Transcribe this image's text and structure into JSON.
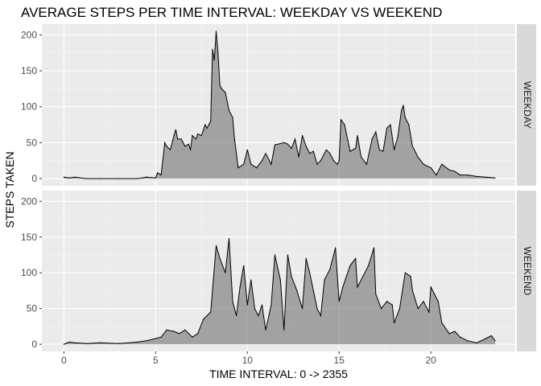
{
  "chart_data": {
    "type": "line",
    "title": "AVERAGE STEPS PER TIME INTERVAL: WEEKDAY VS WEEKEND",
    "xlabel": "TIME INTERVAL: 0 -> 2355",
    "ylabel": "STEPS TAKEN",
    "xlim": [
      -1.2,
      24.6
    ],
    "ylim": [
      -10,
      215
    ],
    "xticks": [
      0,
      5,
      10,
      15,
      20
    ],
    "yticks": [
      0,
      50,
      100,
      150,
      200
    ],
    "grid": true,
    "panels": [
      {
        "label": "WEEKDAY",
        "x": [
          0,
          0.3,
          0.6,
          1.2,
          2.0,
          3.0,
          4.0,
          4.5,
          5.0,
          5.1,
          5.3,
          5.5,
          5.6,
          5.8,
          6.0,
          6.1,
          6.2,
          6.4,
          6.6,
          6.8,
          6.9,
          7.0,
          7.2,
          7.3,
          7.5,
          7.7,
          7.8,
          8.0,
          8.1,
          8.2,
          8.3,
          8.4,
          8.5,
          8.6,
          8.8,
          9.0,
          9.1,
          9.2,
          9.3,
          9.5,
          9.8,
          10.0,
          10.2,
          10.5,
          10.8,
          11.0,
          11.3,
          11.5,
          12.0,
          12.2,
          12.4,
          12.6,
          12.8,
          13.0,
          13.2,
          13.4,
          13.6,
          13.8,
          14.0,
          14.3,
          14.5,
          14.7,
          14.9,
          15.0,
          15.1,
          15.3,
          15.6,
          15.9,
          16.0,
          16.2,
          16.5,
          16.8,
          17.0,
          17.2,
          17.4,
          17.6,
          17.8,
          18.0,
          18.2,
          18.4,
          18.5,
          18.6,
          18.8,
          19.0,
          19.3,
          19.6,
          20.0,
          20.3,
          20.6,
          21.0,
          21.3,
          21.6,
          22.0,
          22.5,
          23.0,
          23.5
        ],
        "values": [
          2,
          1,
          2,
          0,
          0,
          0,
          0,
          2,
          1,
          8,
          5,
          50,
          45,
          40,
          60,
          68,
          55,
          55,
          45,
          48,
          40,
          60,
          55,
          62,
          60,
          75,
          70,
          80,
          180,
          165,
          205,
          175,
          130,
          125,
          120,
          95,
          90,
          85,
          55,
          15,
          20,
          40,
          20,
          15,
          25,
          35,
          20,
          47,
          50,
          48,
          42,
          55,
          30,
          60,
          45,
          35,
          38,
          20,
          25,
          40,
          35,
          25,
          20,
          25,
          82,
          75,
          38,
          42,
          60,
          30,
          20,
          55,
          65,
          40,
          38,
          70,
          75,
          40,
          58,
          95,
          102,
          85,
          75,
          45,
          30,
          20,
          15,
          5,
          20,
          12,
          10,
          5,
          5,
          3,
          2,
          1
        ]
      },
      {
        "label": "WEEKEND",
        "x": [
          0,
          0.3,
          0.6,
          1.2,
          2.0,
          3.0,
          4.0,
          4.5,
          5.0,
          5.3,
          5.6,
          6.0,
          6.3,
          6.6,
          7.0,
          7.3,
          7.6,
          8.0,
          8.3,
          8.5,
          8.8,
          9.0,
          9.2,
          9.4,
          9.6,
          9.8,
          10.0,
          10.2,
          10.4,
          10.6,
          10.8,
          11.0,
          11.3,
          11.5,
          11.8,
          12.0,
          12.2,
          12.4,
          12.7,
          13.0,
          13.2,
          13.4,
          13.6,
          13.8,
          14.0,
          14.2,
          14.5,
          14.8,
          15.0,
          15.2,
          15.4,
          15.6,
          15.9,
          16.0,
          16.3,
          16.6,
          16.9,
          17.0,
          17.3,
          17.6,
          17.9,
          18.0,
          18.3,
          18.6,
          18.9,
          19.0,
          19.3,
          19.6,
          19.9,
          20.0,
          20.2,
          20.4,
          20.6,
          21.0,
          21.3,
          21.6,
          22.0,
          22.5,
          23.0,
          23.3,
          23.5
        ],
        "values": [
          0,
          3,
          2,
          1,
          2,
          1,
          3,
          5,
          8,
          10,
          20,
          18,
          15,
          20,
          10,
          15,
          35,
          45,
          138,
          120,
          100,
          148,
          60,
          40,
          80,
          110,
          55,
          90,
          50,
          40,
          55,
          20,
          55,
          125,
          90,
          20,
          125,
          95,
          75,
          50,
          120,
          100,
          75,
          50,
          40,
          90,
          105,
          135,
          60,
          80,
          95,
          110,
          120,
          80,
          95,
          110,
          135,
          70,
          50,
          60,
          55,
          30,
          50,
          100,
          95,
          75,
          50,
          60,
          45,
          80,
          70,
          60,
          30,
          15,
          18,
          10,
          5,
          2,
          8,
          12,
          5
        ]
      }
    ]
  }
}
